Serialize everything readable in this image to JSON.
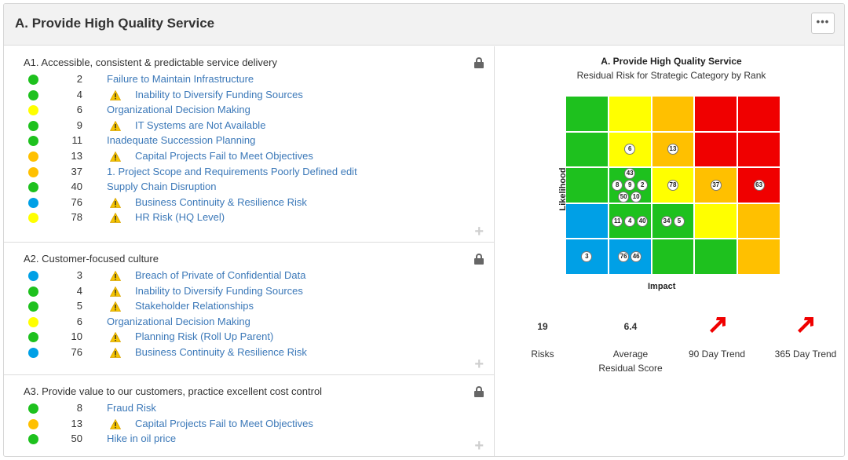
{
  "panel": {
    "title": "A. Provide High Quality Service",
    "menu_label": "•••"
  },
  "colors": {
    "green": "#1ec11e",
    "yellow": "#ffff00",
    "orange": "#ffc000",
    "red": "#f00000",
    "blue": "#00a0e6",
    "link": "#3b78b8"
  },
  "icons": {
    "lock": "lock-icon",
    "add": "plus-icon",
    "warning": "warning-icon",
    "trend": "trend-up-arrow-icon"
  },
  "sections": [
    {
      "title": "A1. Accessible, consistent & predictable service delivery",
      "add_label": "+",
      "rows": [
        {
          "status": "green",
          "rank": "2",
          "warning": false,
          "label": "Failure to Maintain Infrastructure"
        },
        {
          "status": "green",
          "rank": "4",
          "warning": true,
          "label": "Inability to Diversify Funding Sources"
        },
        {
          "status": "yellow",
          "rank": "6",
          "warning": false,
          "label": "Organizational Decision Making"
        },
        {
          "status": "green",
          "rank": "9",
          "warning": true,
          "label": "IT Systems are Not Available"
        },
        {
          "status": "green",
          "rank": "11",
          "warning": false,
          "label": "Inadequate Succession Planning"
        },
        {
          "status": "orange",
          "rank": "13",
          "warning": true,
          "label": "Capital Projects Fail to Meet Objectives"
        },
        {
          "status": "orange",
          "rank": "37",
          "warning": false,
          "label": "1. Project Scope and Requirements Poorly Defined edit"
        },
        {
          "status": "green",
          "rank": "40",
          "warning": false,
          "label": "Supply Chain Disruption"
        },
        {
          "status": "blue",
          "rank": "76",
          "warning": true,
          "label": "Business Continuity & Resilience Risk"
        },
        {
          "status": "yellow",
          "rank": "78",
          "warning": true,
          "label": "HR Risk (HQ Level)"
        }
      ]
    },
    {
      "title": "A2. Customer-focused culture",
      "add_label": "+",
      "rows": [
        {
          "status": "blue",
          "rank": "3",
          "warning": true,
          "label": "Breach of Private of Confidential Data"
        },
        {
          "status": "green",
          "rank": "4",
          "warning": true,
          "label": "Inability to Diversify Funding Sources"
        },
        {
          "status": "green",
          "rank": "5",
          "warning": true,
          "label": "Stakeholder Relationships"
        },
        {
          "status": "yellow",
          "rank": "6",
          "warning": false,
          "label": "Organizational Decision Making"
        },
        {
          "status": "green",
          "rank": "10",
          "warning": true,
          "label": "Planning Risk (Roll Up Parent)"
        },
        {
          "status": "blue",
          "rank": "76",
          "warning": true,
          "label": "Business Continuity & Resilience Risk"
        }
      ]
    },
    {
      "title": "A3. Provide value to our customers, practice excellent cost control",
      "add_label": "+",
      "rows": [
        {
          "status": "green",
          "rank": "8",
          "warning": false,
          "label": "Fraud Risk"
        },
        {
          "status": "orange",
          "rank": "13",
          "warning": true,
          "label": "Capital Projects Fail to Meet Objectives"
        },
        {
          "status": "green",
          "rank": "50",
          "warning": false,
          "label": "Hike in oil price"
        }
      ]
    }
  ],
  "chart_data": {
    "type": "heatmap",
    "title": "A. Provide High Quality Service",
    "subtitle": "Residual Risk for Strategic Category by Rank",
    "xlabel": "Impact",
    "ylabel": "Likelihood",
    "grid": [
      [
        "green",
        "yellow",
        "orange",
        "red",
        "red"
      ],
      [
        "green",
        "yellow",
        "orange",
        "red",
        "red"
      ],
      [
        "green",
        "green",
        "yellow",
        "orange",
        "red"
      ],
      [
        "blue",
        "green",
        "green",
        "yellow",
        "orange"
      ],
      [
        "blue",
        "blue",
        "green",
        "green",
        "orange"
      ]
    ],
    "points": [
      {
        "rank": "6",
        "row": 1,
        "col": 1
      },
      {
        "rank": "13",
        "row": 1,
        "col": 2
      },
      {
        "rank": "43",
        "row": 2,
        "col": 1
      },
      {
        "rank": "8",
        "row": 2,
        "col": 1
      },
      {
        "rank": "9",
        "row": 2,
        "col": 1
      },
      {
        "rank": "2",
        "row": 2,
        "col": 1
      },
      {
        "rank": "50",
        "row": 2,
        "col": 1
      },
      {
        "rank": "10",
        "row": 2,
        "col": 1
      },
      {
        "rank": "78",
        "row": 2,
        "col": 2
      },
      {
        "rank": "37",
        "row": 2,
        "col": 3
      },
      {
        "rank": "63",
        "row": 2,
        "col": 4
      },
      {
        "rank": "11",
        "row": 3,
        "col": 1
      },
      {
        "rank": "4",
        "row": 3,
        "col": 1
      },
      {
        "rank": "40",
        "row": 3,
        "col": 1
      },
      {
        "rank": "34",
        "row": 3,
        "col": 2
      },
      {
        "rank": "5",
        "row": 3,
        "col": 2
      },
      {
        "rank": "3",
        "row": 4,
        "col": 0
      },
      {
        "rank": "76",
        "row": 4,
        "col": 1
      },
      {
        "rank": "46",
        "row": 4,
        "col": 1
      }
    ]
  },
  "stats": {
    "risks_value": "19",
    "risks_label": "Risks",
    "avg_value": "6.4",
    "avg_label_1": "Average",
    "avg_label_2": "Residual Score",
    "trend90_label": "90 Day Trend",
    "trend365_label": "365 Day Trend"
  }
}
